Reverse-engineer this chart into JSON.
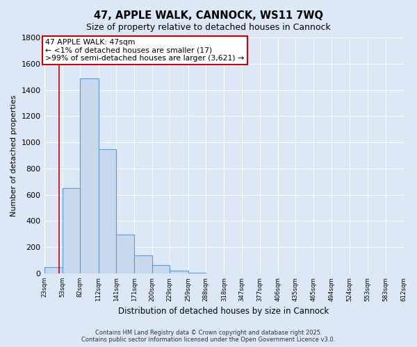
{
  "title": "47, APPLE WALK, CANNOCK, WS11 7WQ",
  "subtitle": "Size of property relative to detached houses in Cannock",
  "xlabel": "Distribution of detached houses by size in Cannock",
  "ylabel": "Number of detached properties",
  "bar_edges": [
    23,
    53,
    82,
    112,
    141,
    171,
    200,
    229,
    259,
    288,
    318,
    347,
    377,
    406,
    435,
    465,
    494,
    524,
    553,
    583,
    612
  ],
  "bar_heights": [
    45,
    650,
    1490,
    950,
    295,
    135,
    65,
    20,
    5,
    2,
    1,
    1,
    0,
    0,
    0,
    0,
    0,
    0,
    0,
    0
  ],
  "bar_color": "#c8d9ee",
  "bar_edge_color": "#5b9bd5",
  "property_line_x": 47,
  "property_line_color": "#cc0000",
  "annotation_title": "47 APPLE WALK: 47sqm",
  "annotation_line1": "← <1% of detached houses are smaller (17)",
  "annotation_line2": ">99% of semi-detached houses are larger (3,621) →",
  "annotation_box_color": "#ffffff",
  "annotation_box_edge": "#cc0000",
  "ylim": [
    0,
    1800
  ],
  "yticks": [
    0,
    200,
    400,
    600,
    800,
    1000,
    1200,
    1400,
    1600,
    1800
  ],
  "tick_labels": [
    "23sqm",
    "53sqm",
    "82sqm",
    "112sqm",
    "141sqm",
    "171sqm",
    "200sqm",
    "229sqm",
    "259sqm",
    "288sqm",
    "318sqm",
    "347sqm",
    "377sqm",
    "406sqm",
    "435sqm",
    "465sqm",
    "494sqm",
    "524sqm",
    "553sqm",
    "583sqm",
    "612sqm"
  ],
  "footer_line1": "Contains HM Land Registry data © Crown copyright and database right 2025.",
  "footer_line2": "Contains public sector information licensed under the Open Government Licence v3.0.",
  "bg_color": "#dce8f5",
  "plot_bg_color": "#dce8f5",
  "grid_color": "#ffffff"
}
